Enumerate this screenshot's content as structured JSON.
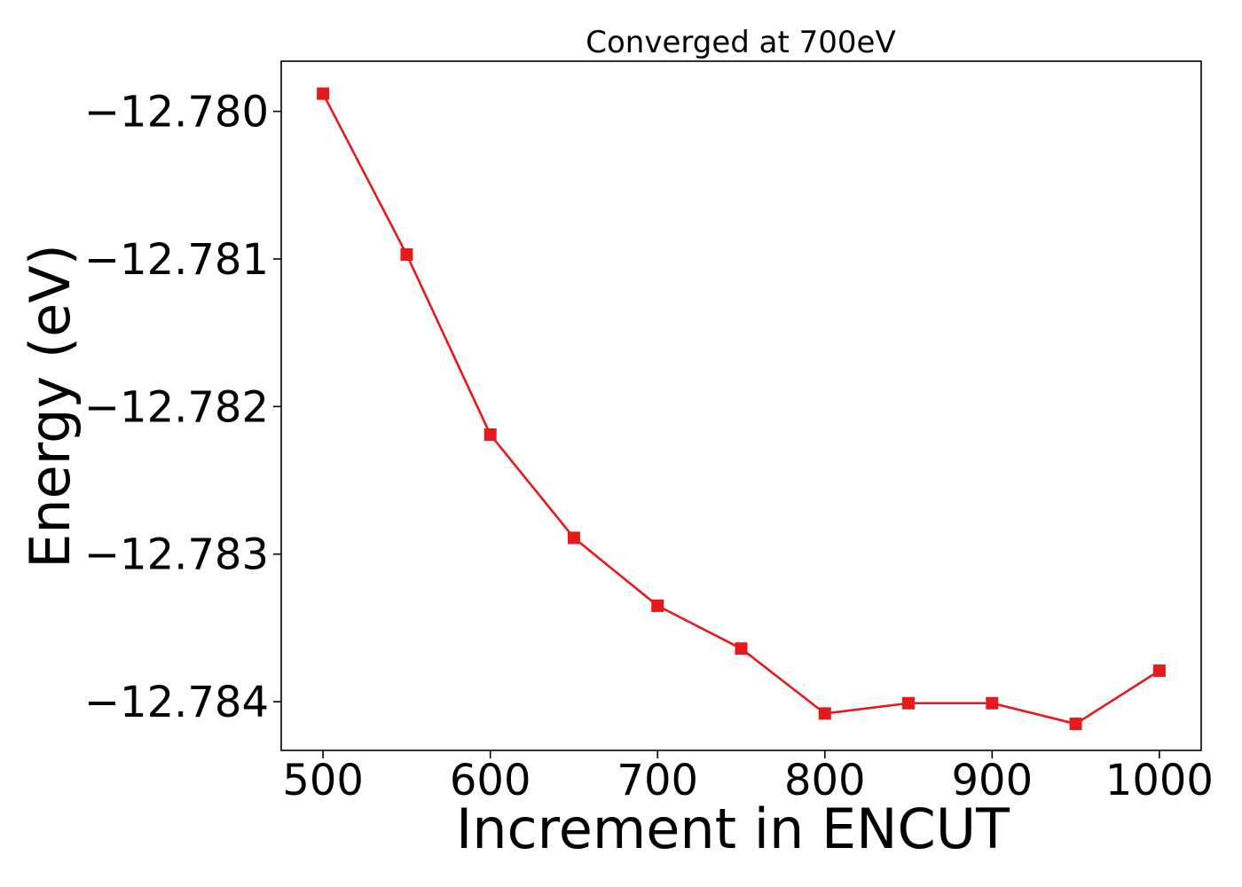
{
  "chart_data": {
    "type": "line",
    "title": "Converged at 700eV",
    "xlabel": "Increment in ENCUT",
    "ylabel": "Energy (eV)",
    "x": [
      500,
      550,
      600,
      650,
      700,
      750,
      800,
      850,
      900,
      950,
      1000
    ],
    "series": [
      {
        "name": "",
        "values": [
          -12.77988,
          -12.78097,
          -12.78219,
          -12.78289,
          -12.78335,
          -12.78364,
          -12.78408,
          -12.78401,
          -12.78401,
          -12.78415,
          -12.78379
        ],
        "color": "#e41a1c",
        "marker": "square"
      }
    ],
    "xlim": [
      475,
      1025
    ],
    "ylim": [
      -12.78433,
      -12.77966
    ],
    "xticks": [
      500,
      600,
      700,
      800,
      900,
      1000
    ],
    "xtick_labels": [
      "500",
      "600",
      "700",
      "800",
      "900",
      "1000"
    ],
    "yticks": [
      -12.78,
      -12.781,
      -12.782,
      -12.783,
      -12.784
    ],
    "ytick_labels": [
      "−12.780",
      "−12.781",
      "−12.782",
      "−12.783",
      "−12.784"
    ],
    "grid": false,
    "legend": "none"
  }
}
